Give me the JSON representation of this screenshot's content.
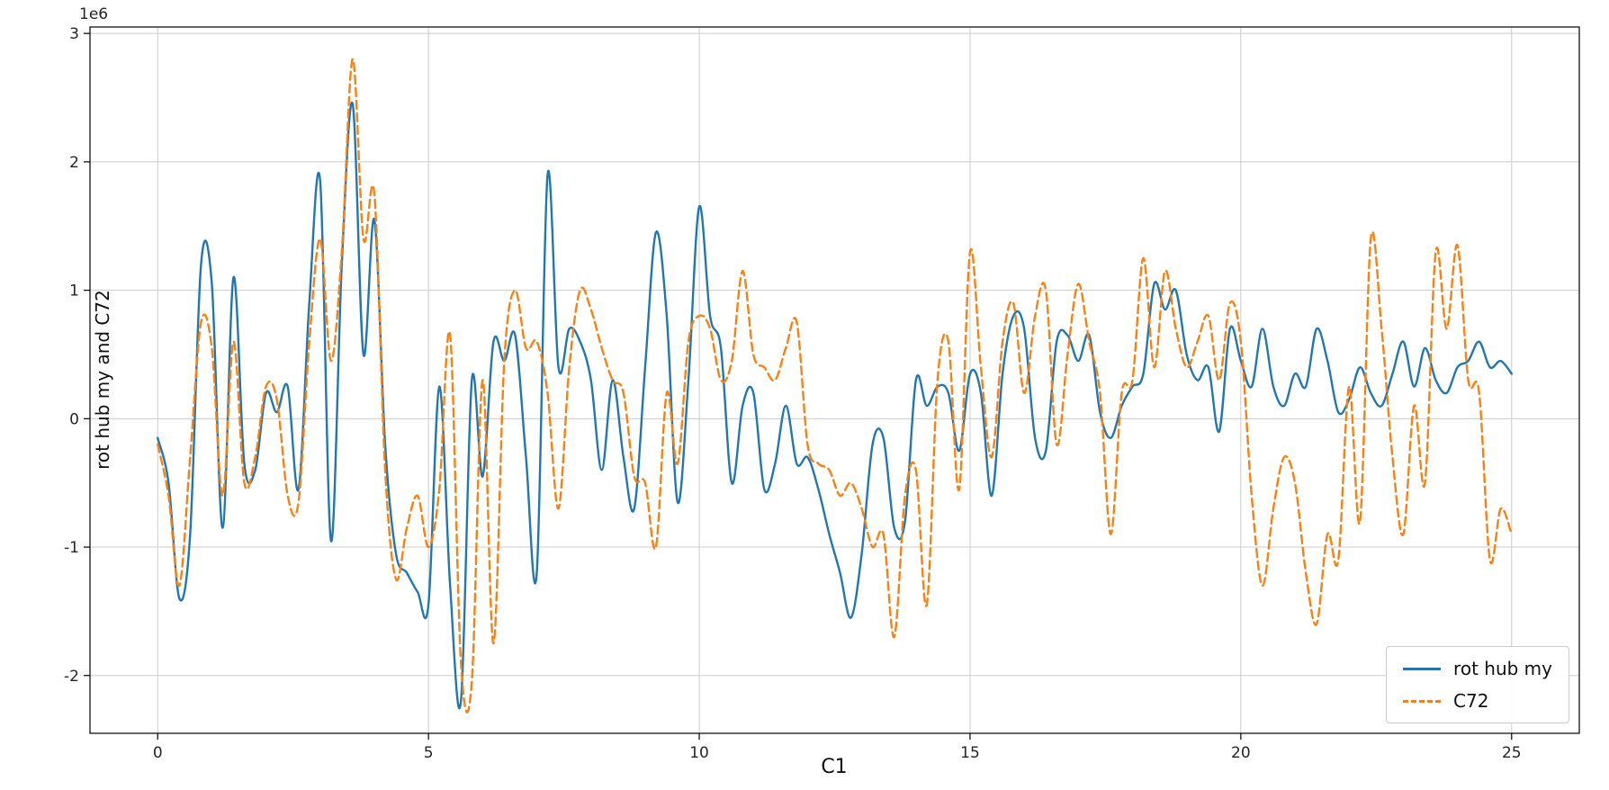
{
  "chart_data": {
    "type": "line",
    "title": "",
    "xlabel": "C1",
    "ylabel": "rot hub my and C72",
    "offset_label": "1e6",
    "grid": true,
    "xlim": [
      -1.25,
      26.25
    ],
    "ylim_1e6": [
      -2.45,
      3.05
    ],
    "xticks": [
      0,
      5,
      10,
      15,
      20,
      25
    ],
    "yticks_1e6": [
      -2,
      -1,
      0,
      1,
      2,
      3
    ],
    "x_start": 0,
    "x_step": 0.2,
    "legend": {
      "position": "lower right",
      "entries": [
        {
          "label": "rot hub my",
          "color": "#1f77b4",
          "style": "solid"
        },
        {
          "label": "C72",
          "color": "#ff7f0e",
          "style": "dashed"
        }
      ]
    },
    "series": [
      {
        "name": "rot hub my",
        "color": "#1f77b4",
        "dash": null,
        "values_1e6": [
          -0.15,
          -0.5,
          -1.4,
          -0.9,
          1.2,
          1.05,
          -0.85,
          1.1,
          -0.35,
          -0.4,
          0.2,
          0.05,
          0.25,
          -0.55,
          0.9,
          1.85,
          -0.95,
          1.2,
          2.45,
          0.5,
          1.55,
          -0.2,
          -1.05,
          -1.2,
          -1.35,
          -1.45,
          0.25,
          -1.3,
          -2.2,
          0.3,
          -0.45,
          0.6,
          0.45,
          0.65,
          -0.3,
          -1.2,
          1.9,
          0.4,
          0.7,
          0.6,
          0.3,
          -0.4,
          0.3,
          -0.3,
          -0.7,
          0.4,
          1.45,
          0.8,
          -0.65,
          0.3,
          1.65,
          0.8,
          0.55,
          -0.5,
          0.1,
          0.2,
          -0.55,
          -0.35,
          0.1,
          -0.35,
          -0.3,
          -0.55,
          -0.9,
          -1.2,
          -1.55,
          -1.05,
          -0.2,
          -0.15,
          -0.85,
          -0.8,
          0.3,
          0.1,
          0.25,
          0.2,
          -0.25,
          0.35,
          0.2,
          -0.6,
          0.35,
          0.8,
          0.7,
          -0.15,
          -0.25,
          0.6,
          0.65,
          0.45,
          0.65,
          0.05,
          -0.15,
          0.1,
          0.25,
          0.35,
          1.05,
          0.85,
          1.0,
          0.5,
          0.3,
          0.4,
          -0.1,
          0.7,
          0.45,
          0.25,
          0.7,
          0.25,
          0.1,
          0.35,
          0.25,
          0.7,
          0.45,
          0.05,
          0.15,
          0.4,
          0.2,
          0.1,
          0.35,
          0.6,
          0.25,
          0.55,
          0.3,
          0.2,
          0.4,
          0.45,
          0.6,
          0.4,
          0.45,
          0.35
        ]
      },
      {
        "name": "C72",
        "color": "#ff7f0e",
        "dash": [
          9,
          5
        ],
        "values_1e6": [
          -0.2,
          -0.6,
          -1.3,
          -0.3,
          0.75,
          0.55,
          -0.6,
          0.6,
          -0.5,
          -0.3,
          0.25,
          0.15,
          -0.6,
          -0.65,
          0.6,
          1.4,
          0.45,
          1.3,
          2.8,
          1.4,
          1.75,
          -0.4,
          -1.25,
          -0.85,
          -0.6,
          -1.0,
          -0.55,
          0.65,
          -1.9,
          -2.05,
          0.3,
          -1.75,
          0.45,
          1.0,
          0.55,
          0.6,
          0.2,
          -0.7,
          0.4,
          1.0,
          0.85,
          0.55,
          0.3,
          0.2,
          -0.45,
          -0.5,
          -1.0,
          0.2,
          -0.35,
          0.6,
          0.8,
          0.7,
          0.3,
          0.45,
          1.15,
          0.5,
          0.4,
          0.3,
          0.55,
          0.75,
          -0.2,
          -0.35,
          -0.4,
          -0.6,
          -0.5,
          -0.7,
          -1.0,
          -0.9,
          -1.7,
          -0.6,
          -0.4,
          -1.45,
          0.3,
          0.6,
          -0.55,
          1.3,
          0.4,
          -0.3,
          0.6,
          0.9,
          0.2,
          0.8,
          1.0,
          -0.2,
          0.5,
          1.05,
          0.6,
          0.2,
          -0.9,
          0.2,
          0.3,
          1.25,
          0.4,
          1.15,
          0.7,
          0.4,
          0.6,
          0.8,
          0.3,
          0.9,
          0.6,
          -0.6,
          -1.3,
          -0.7,
          -0.3,
          -0.5,
          -1.2,
          -1.6,
          -0.9,
          -1.1,
          0.25,
          -0.8,
          1.4,
          0.7,
          -0.3,
          -0.9,
          0.1,
          -0.5,
          1.3,
          0.7,
          1.35,
          0.3,
          0.2,
          -1.1,
          -0.7,
          -0.9
        ]
      }
    ]
  }
}
